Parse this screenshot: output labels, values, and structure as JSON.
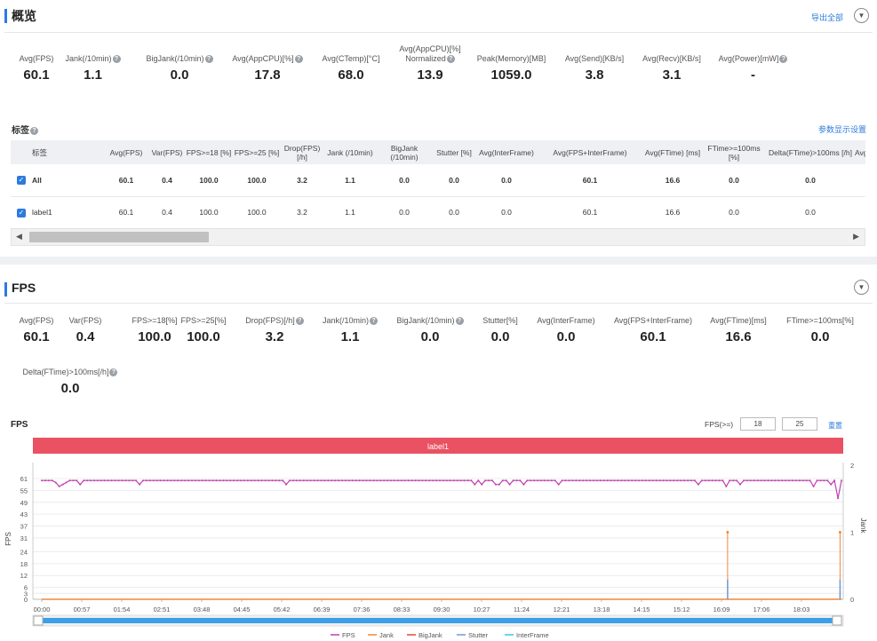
{
  "overview": {
    "title": "概览",
    "export_all": "导出全部",
    "metrics": [
      {
        "label": "Avg(FPS)",
        "value": "60.1",
        "help": false
      },
      {
        "label": "Jank(/10min)",
        "value": "1.1",
        "help": true
      },
      {
        "label": "BigJank(/10min)",
        "value": "0.0",
        "help": true
      },
      {
        "label": "Avg(AppCPU)[%]",
        "value": "17.8",
        "help": true
      },
      {
        "label": "Avg(CTemp)[°C]",
        "value": "68.0",
        "help": false
      },
      {
        "label": "Avg(AppCPU)[%] Normalized",
        "value": "13.9",
        "help": true
      },
      {
        "label": "Peak(Memory)[MB]",
        "value": "1059.0",
        "help": false
      },
      {
        "label": "Avg(Send)[KB/s]",
        "value": "3.8",
        "help": false
      },
      {
        "label": "Avg(Recv)[KB/s]",
        "value": "3.1",
        "help": false
      },
      {
        "label": "Avg(Power)[mW]",
        "value": "-",
        "help": true
      }
    ]
  },
  "tags": {
    "title": "标签",
    "settings_link": "参数显示设置",
    "columns": [
      "标签",
      "Avg(FPS)",
      "Var(FPS)",
      "FPS>=18 [%]",
      "FPS>=25 [%]",
      "Drop(FPS) [/h]",
      "Jank (/10min)",
      "BigJank (/10min)",
      "Stutter [%]",
      "Avg(InterFrame)",
      "Avg(FPS+InterFrame)",
      "Avg(FTime) [ms]",
      "FTime>=100ms [%]",
      "Delta(FTime)>100ms [/h]",
      "Avg("
    ],
    "rows": [
      {
        "name": "All",
        "cells": [
          "60.1",
          "0.4",
          "100.0",
          "100.0",
          "3.2",
          "1.1",
          "0.0",
          "0.0",
          "0.0",
          "60.1",
          "16.6",
          "0.0",
          "0.0",
          ""
        ]
      },
      {
        "name": "label1",
        "cells": [
          "60.1",
          "0.4",
          "100.0",
          "100.0",
          "3.2",
          "1.1",
          "0.0",
          "0.0",
          "0.0",
          "60.1",
          "16.6",
          "0.0",
          "0.0",
          ""
        ]
      }
    ]
  },
  "fps_section": {
    "title": "FPS",
    "metrics_row1": [
      {
        "label": "Avg(FPS)",
        "value": "60.1",
        "help": false
      },
      {
        "label": "Var(FPS)",
        "value": "0.4",
        "help": false
      },
      {
        "label": "FPS>=18[%]",
        "value": "100.0",
        "help": false
      },
      {
        "label": "FPS>=25[%]",
        "value": "100.0",
        "help": false
      },
      {
        "label": "Drop(FPS)[/h]",
        "value": "3.2",
        "help": true
      },
      {
        "label": "Jank(/10min)",
        "value": "1.1",
        "help": true
      },
      {
        "label": "BigJank(/10min)",
        "value": "0.0",
        "help": true
      },
      {
        "label": "Stutter[%]",
        "value": "0.0",
        "help": false
      },
      {
        "label": "Avg(InterFrame)",
        "value": "0.0",
        "help": false
      },
      {
        "label": "Avg(FPS+InterFrame)",
        "value": "60.1",
        "help": false
      },
      {
        "label": "Avg(FTime)[ms]",
        "value": "16.6",
        "help": false
      },
      {
        "label": "FTime>=100ms[%]",
        "value": "0.0",
        "help": false
      }
    ],
    "metrics_row2": [
      {
        "label": "Delta(FTime)>100ms[/h]",
        "value": "0.0",
        "help": true
      }
    ],
    "chart_title": "FPS",
    "fps_threshold_label": "FPS(>=)",
    "fps_threshold_1": "18",
    "fps_threshold_2": "25",
    "reset_label": "重置",
    "label_band": "label1"
  },
  "colors": {
    "accent": "#2d7bdc",
    "fps": "#c040b0",
    "jank": "#f0883a",
    "bigjank": "#e0473f",
    "stutter": "#7097d8",
    "interframe": "#3ec6d8",
    "label_band": "#ea5163",
    "slider": "#3aa0e8"
  },
  "chart_data": {
    "type": "line",
    "x_ticks": [
      "00:00",
      "00:57",
      "01:54",
      "02:51",
      "03:48",
      "04:45",
      "05:42",
      "06:39",
      "07:36",
      "08:33",
      "09:30",
      "10:27",
      "11:24",
      "12:21",
      "13:18",
      "14:15",
      "15:12",
      "16:09",
      "17:06",
      "18:03"
    ],
    "y_ticks": [
      0,
      3,
      6,
      12,
      18,
      24,
      31,
      37,
      43,
      49,
      55,
      61
    ],
    "y2_ticks": [
      0,
      1,
      2
    ],
    "ylabel": "FPS",
    "y2label": "Jank",
    "ylim": [
      0,
      61
    ],
    "y2lim": [
      0,
      2
    ],
    "xlim_seconds": [
      0,
      1145
    ],
    "legend": [
      "FPS",
      "Jank",
      "BigJank",
      "Stutter",
      "InterFrame"
    ],
    "legend_position": "bottom",
    "series": [
      {
        "name": "FPS",
        "baseline": 60,
        "dips": [
          [
            20,
            59
          ],
          [
            25,
            57
          ],
          [
            30,
            58
          ],
          [
            32,
            54
          ],
          [
            35,
            59
          ],
          [
            55,
            58
          ],
          [
            140,
            58
          ],
          [
            350,
            58
          ],
          [
            620,
            58
          ],
          [
            630,
            58
          ],
          [
            650,
            58
          ],
          [
            655,
            58
          ],
          [
            670,
            58
          ],
          [
            690,
            58
          ],
          [
            740,
            58
          ],
          [
            940,
            58
          ],
          [
            980,
            57
          ],
          [
            1000,
            58
          ],
          [
            1105,
            57
          ],
          [
            1130,
            58
          ],
          [
            1140,
            51
          ]
        ]
      },
      {
        "name": "Jank",
        "points": [
          [
            982,
            1
          ],
          [
            1143,
            1
          ]
        ]
      },
      {
        "name": "BigJank",
        "points": []
      },
      {
        "name": "Stutter",
        "points": [
          [
            982,
            10
          ],
          [
            1143,
            10
          ]
        ]
      },
      {
        "name": "InterFrame",
        "points": []
      }
    ]
  }
}
